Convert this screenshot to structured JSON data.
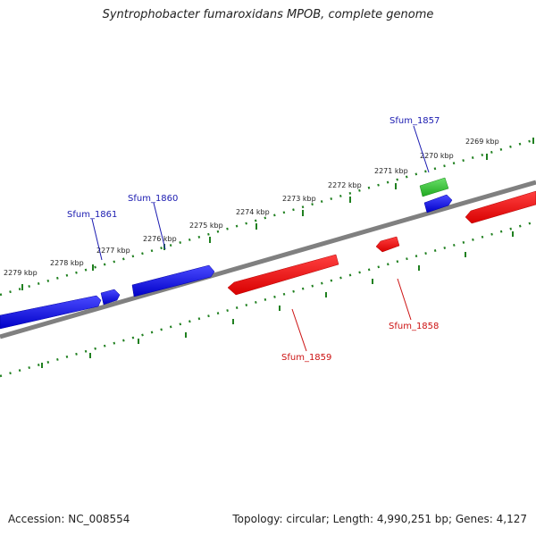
{
  "title": "Syntrophobacter fumaroxidans MPOB, complete genome",
  "footer": {
    "accession": "Accession: NC_008554",
    "summary": "Topology: circular; Length: 4,990,251 bp; Genes: 4,127"
  },
  "colors": {
    "forward_strand": "#1010e0",
    "reverse_strand": "#ee1111",
    "rna": "#30c030",
    "backbone": "#808080",
    "ticks": "#208020",
    "forward_label": "#1a1ab0",
    "reverse_label": "#cc1111"
  },
  "ruler": {
    "tick_labels": [
      "2279 kbp",
      "2278 kbp",
      "2277 kbp",
      "2276 kbp",
      "2275 kbp",
      "2274 kbp",
      "2273 kbp",
      "2272 kbp",
      "2271 kbp",
      "2270 kbp",
      "2269 kbp"
    ]
  },
  "genes": {
    "forward": [
      "Sfum_1861",
      "Sfum_1860",
      "Sfum_1857"
    ],
    "reverse": [
      "Sfum_1859",
      "Sfum_1858"
    ]
  }
}
